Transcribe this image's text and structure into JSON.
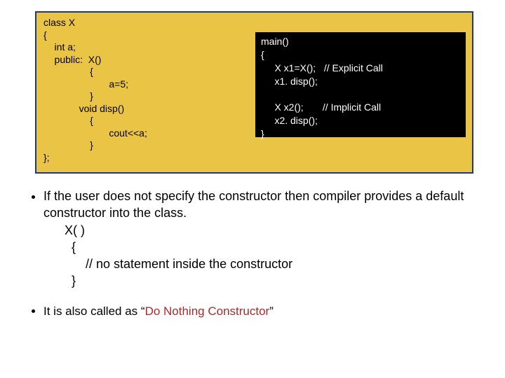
{
  "colors": {
    "code_box_bg": "#eac445",
    "code_box_border": "#1a3c7a",
    "right_code_bg": "#000000",
    "right_code_fg": "#ffffff",
    "highlight_text": "#aa2a2a",
    "page_bg": "#ffffff",
    "text": "#000000"
  },
  "typography": {
    "body_font": "Arial, Helvetica, sans-serif",
    "code_fontsize": 14,
    "bullet_fontsize": 18
  },
  "left_code": "class X\n{\n    int a;\n    public:  X()\n                 {\n                        a=5;\n                 }\n             void disp()\n                 {\n                        cout<<a;\n                 }\n};",
  "right_code": "main()\n{\n     X x1=X();   // Explicit Call\n     x1. disp();\n\n     X x2();       // Implicit Call\n     x2. disp();\n}",
  "bullet1_lead": "If the user does not specify the constructor then compiler provides a default constructor into the class.",
  "bullet1_code": "X( )\n  {\n      // no statement inside the constructor\n  }",
  "bullet2_pre": "It is also called as “",
  "bullet2_hl": "Do Nothing Constructor",
  "bullet2_post": "”"
}
